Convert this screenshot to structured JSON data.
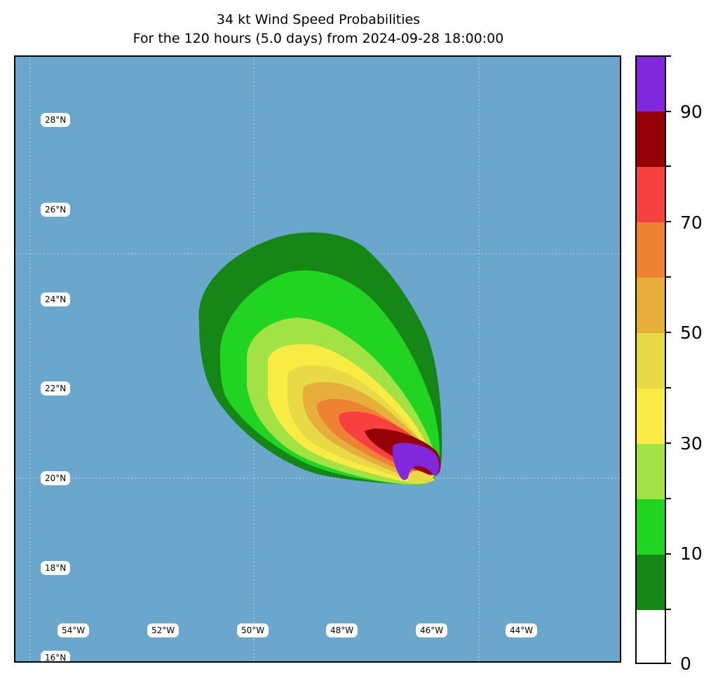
{
  "title_line1": "34 kt Wind Speed Probabilities",
  "title_line2": "For the 120 hours (5.0 days) from 2024-09-28 18:00:00",
  "lat_labels": [
    "28°N",
    "26°N",
    "24°N",
    "22°N",
    "20°N",
    "18°N",
    "16°N"
  ],
  "lon_labels": [
    "54°W",
    "52°W",
    "50°W",
    "48°W",
    "46°W",
    "44°W"
  ],
  "colorbar": {
    "colors": [
      "#ffffff",
      "#168716",
      "#22d422",
      "#a3e245",
      "#f9eb44",
      "#e8da46",
      "#e6ae3b",
      "#ee8233",
      "#f84040",
      "#950006",
      "#8127dc"
    ],
    "tick_labels": [
      "0",
      "10",
      "30",
      "50",
      "70",
      "90"
    ]
  },
  "colors": {
    "ocean": "#6ba7cc",
    "gridline": "#b8d3e4"
  }
}
